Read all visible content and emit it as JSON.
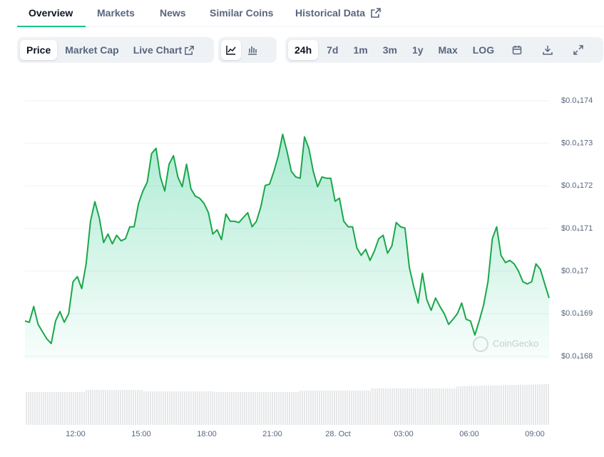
{
  "tabs": [
    "Overview",
    "Markets",
    "News",
    "Similar Coins",
    "Historical Data"
  ],
  "toolbar": {
    "views": [
      "Price",
      "Market Cap",
      "Live Chart"
    ],
    "ranges": [
      "24h",
      "7d",
      "1m",
      "3m",
      "1y",
      "Max",
      "LOG"
    ]
  },
  "chart_data": {
    "type": "line",
    "color": "#1aa64a",
    "grid": true,
    "watermark": "CoinGecko",
    "x_labels": [
      "12:00",
      "15:00",
      "18:00",
      "21:00",
      "28. Oct",
      "03:00",
      "06:00",
      "09:00"
    ],
    "ylim": [
      1.68e-05,
      1.74e-05
    ],
    "yticks": [
      {
        "value": 1.68e-05,
        "label": "$0.0₄168"
      },
      {
        "value": 1.69e-05,
        "label": "$0.0₄169"
      },
      {
        "value": 1.7e-05,
        "label": "$0.0₄17"
      },
      {
        "value": 1.71e-05,
        "label": "$0.0₄171"
      },
      {
        "value": 1.72e-05,
        "label": "$0.0₄172"
      },
      {
        "value": 1.73e-05,
        "label": "$0.0₄173"
      },
      {
        "value": 1.74e-05,
        "label": "$0.0₄174"
      }
    ],
    "values": [
      1.6883e-05,
      1.688e-05,
      1.6917e-05,
      1.6875e-05,
      1.6858e-05,
      1.6841e-05,
      1.683e-05,
      1.6883e-05,
      1.6905e-05,
      1.688e-05,
      1.69e-05,
      1.6975e-05,
      1.6987e-05,
      1.6959e-05,
      1.7017e-05,
      1.7117e-05,
      1.7163e-05,
      1.7126e-05,
      1.7067e-05,
      1.7087e-05,
      1.7064e-05,
      1.7084e-05,
      1.7071e-05,
      1.7076e-05,
      1.7104e-05,
      1.7104e-05,
      1.7159e-05,
      1.7188e-05,
      1.7209e-05,
      1.7276e-05,
      1.7288e-05,
      1.7221e-05,
      1.7188e-05,
      1.7251e-05,
      1.7271e-05,
      1.7221e-05,
      1.7198e-05,
      1.7251e-05,
      1.7193e-05,
      1.7176e-05,
      1.7171e-05,
      1.7159e-05,
      1.7137e-05,
      1.7087e-05,
      1.7097e-05,
      1.7074e-05,
      1.7134e-05,
      1.7117e-05,
      1.7117e-05,
      1.7114e-05,
      1.7126e-05,
      1.7137e-05,
      1.7104e-05,
      1.7117e-05,
      1.7151e-05,
      1.7201e-05,
      1.7204e-05,
      1.7234e-05,
      1.7271e-05,
      1.7321e-05,
      1.7281e-05,
      1.7234e-05,
      1.7221e-05,
      1.7218e-05,
      1.7315e-05,
      1.7288e-05,
      1.7234e-05,
      1.7198e-05,
      1.7221e-05,
      1.7218e-05,
      1.7218e-05,
      1.7164e-05,
      1.7171e-05,
      1.7117e-05,
      1.7104e-05,
      1.7104e-05,
      1.7054e-05,
      1.7037e-05,
      1.7051e-05,
      1.7025e-05,
      1.7047e-05,
      1.7076e-05,
      1.7084e-05,
      1.7042e-05,
      1.7059e-05,
      1.7114e-05,
      1.7104e-05,
      1.7101e-05,
      1.7009e-05,
      1.6964e-05,
      1.6925e-05,
      1.6995e-05,
      1.6933e-05,
      1.6908e-05,
      1.6937e-05,
      1.6917e-05,
      1.69e-05,
      1.6875e-05,
      1.6887e-05,
      1.69e-05,
      1.6925e-05,
      1.6887e-05,
      1.6883e-05,
      1.685e-05,
      1.6883e-05,
      1.692e-05,
      1.6975e-05,
      1.7076e-05,
      1.7104e-05,
      1.7037e-05,
      1.702e-05,
      1.7025e-05,
      1.7017e-05,
      1.7e-05,
      1.6975e-05,
      1.697e-05,
      1.6975e-05,
      1.7017e-05,
      1.7004e-05,
      1.697e-05,
      1.6937e-05
    ]
  }
}
